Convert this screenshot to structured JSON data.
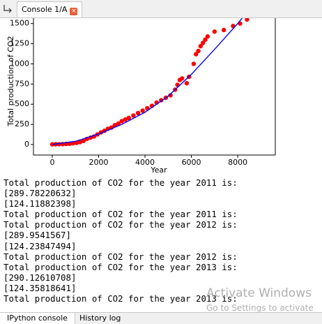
{
  "tabs": {
    "console": "Console 1/A"
  },
  "chart_data": {
    "type": "scatter",
    "xlabel": "Year",
    "ylabel": "Total production of CO2",
    "xlim": [
      -810,
      9620
    ],
    "ylim": [
      -130,
      1740
    ],
    "xticks": [
      0,
      2000,
      4000,
      6000,
      8000
    ],
    "yticks": [
      0,
      250,
      500,
      750,
      1000,
      1250,
      1500
    ],
    "scatter": {
      "color": "#ff0000",
      "x": [
        0,
        150,
        300,
        450,
        600,
        750,
        900,
        1050,
        1200,
        1350,
        1500,
        1650,
        1800,
        1950,
        2100,
        2250,
        2400,
        2550,
        2700,
        2850,
        3000,
        3150,
        3300,
        3500,
        3700,
        3900,
        4100,
        4300,
        4500,
        4700,
        4900,
        5100,
        5300,
        5400,
        5500,
        5600,
        5800,
        5900,
        6100,
        6200,
        6300,
        6400,
        6500,
        6600,
        6700,
        7000,
        7400,
        7800,
        8100,
        8400
      ],
      "y": [
        2,
        3,
        4,
        5,
        8,
        10,
        15,
        20,
        30,
        45,
        70,
        85,
        100,
        125,
        150,
        170,
        195,
        210,
        240,
        260,
        290,
        310,
        330,
        360,
        390,
        420,
        450,
        480,
        520,
        550,
        580,
        610,
        680,
        740,
        800,
        820,
        760,
        840,
        1000,
        1120,
        1160,
        1220,
        1260,
        1300,
        1340,
        1400,
        1420,
        1470,
        1500,
        1550
      ]
    },
    "line": {
      "color": "#0000ff",
      "x": [
        0,
        1000,
        2000,
        3000,
        4000,
        5000,
        6000,
        7000,
        8000,
        8400
      ],
      "y": [
        0,
        40,
        130,
        250,
        400,
        600,
        870,
        1180,
        1500,
        1640
      ]
    }
  },
  "console_lines": [
    "Total production of CO2 for the year 2011 is:",
    "[289.78220632]",
    "[124.11882398]",
    "Total production of CO2 for the year 2011 is:",
    "Total production of CO2 for the year 2012 is:",
    "[289.9541567]",
    "[124.23847494]",
    "Total production of CO2 for the year 2012 is:",
    "Total production of CO2 for the year 2013 is:",
    "[290.12610708]",
    "[124.35818641]",
    "Total production of CO2 for the year 2013 is:"
  ],
  "watermark": {
    "title": "Activate Windows",
    "subtitle": "Go to Settings to activate"
  },
  "bottom_tabs": [
    "IPython console",
    "History log"
  ]
}
